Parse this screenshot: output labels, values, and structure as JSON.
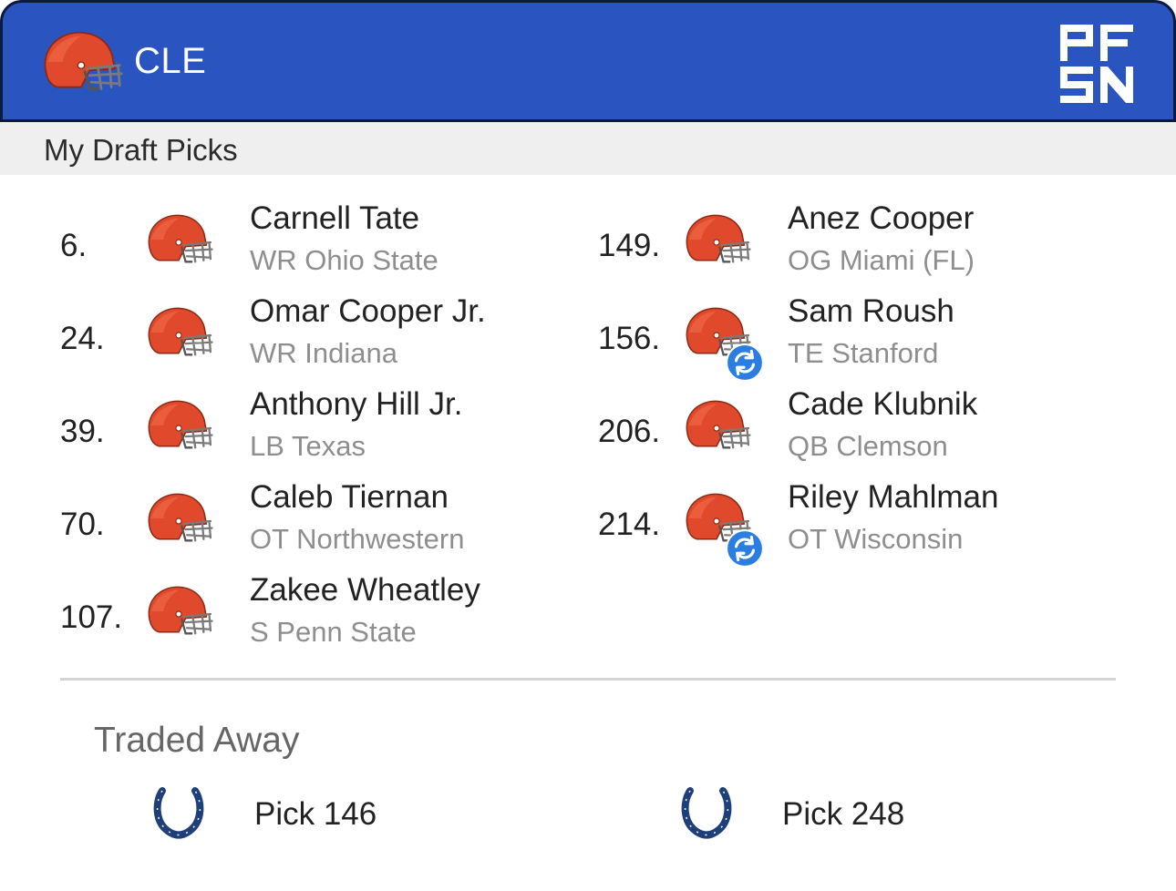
{
  "header": {
    "team_abbr": "CLE",
    "logo_text": "PFSN"
  },
  "section": {
    "title": "My Draft Picks"
  },
  "picks": [
    {
      "number": "6.",
      "name": "Carnell Tate",
      "info": "WR Ohio State",
      "traded": false
    },
    {
      "number": "24.",
      "name": "Omar Cooper Jr.",
      "info": "WR Indiana",
      "traded": false
    },
    {
      "number": "39.",
      "name": "Anthony Hill Jr.",
      "info": "LB Texas",
      "traded": false
    },
    {
      "number": "70.",
      "name": "Caleb Tiernan",
      "info": "OT Northwestern",
      "traded": false
    },
    {
      "number": "107.",
      "name": "Zakee Wheatley",
      "info": "S Penn State",
      "traded": false
    },
    {
      "number": "149.",
      "name": "Anez Cooper",
      "info": "OG Miami (FL)",
      "traded": false
    },
    {
      "number": "156.",
      "name": "Sam Roush",
      "info": "TE Stanford",
      "traded": true
    },
    {
      "number": "206.",
      "name": "Cade Klubnik",
      "info": "QB Clemson",
      "traded": false
    },
    {
      "number": "214.",
      "name": "Riley Mahlman",
      "info": "OT Wisconsin",
      "traded": true
    }
  ],
  "traded_away": {
    "title": "Traded Away",
    "items": [
      {
        "label": "Pick 146",
        "icon": "colts-horseshoe-icon"
      },
      {
        "label": "Pick 248",
        "icon": "colts-horseshoe-icon"
      }
    ]
  },
  "colors": {
    "header_blue": "#2a54c0",
    "browns_orange": "#e0492b",
    "colts_blue": "#1f3f7a"
  },
  "icons": {
    "team_helmet": "browns-helmet-icon",
    "trade": "trade-swap-icon"
  }
}
